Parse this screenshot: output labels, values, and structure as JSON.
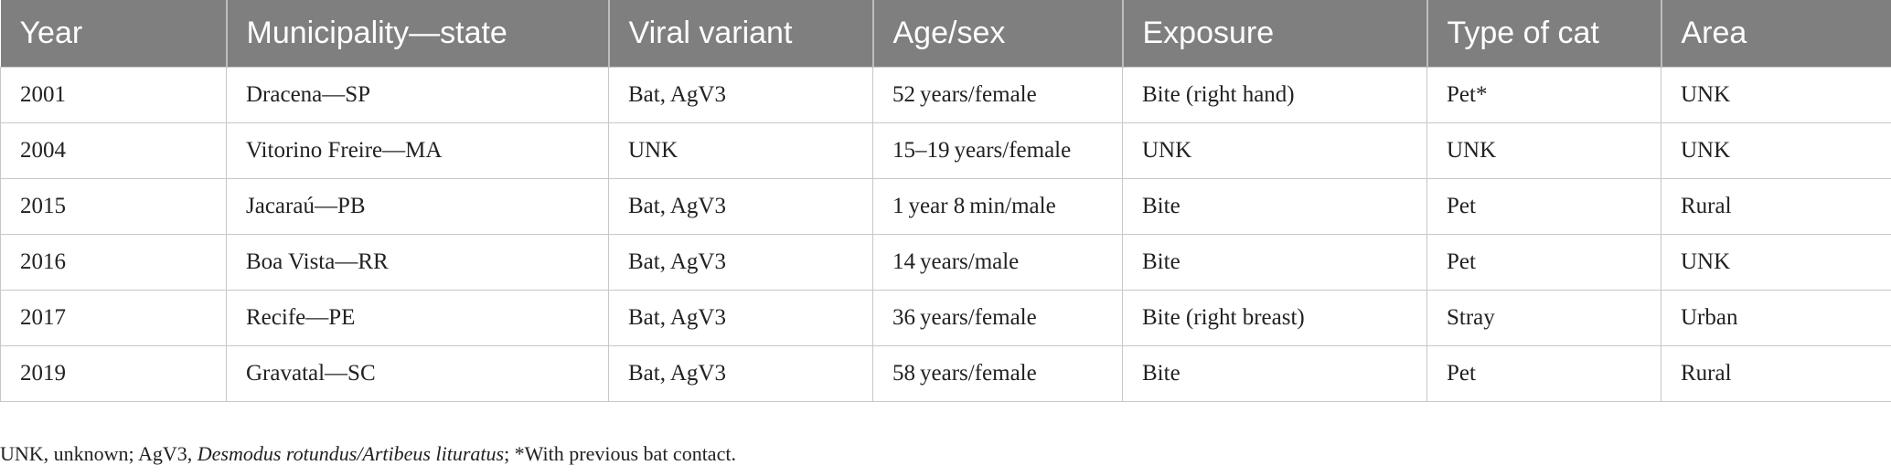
{
  "table": {
    "header": [
      "Year",
      "Municipality—state",
      "Viral variant",
      "Age/sex",
      "Exposure",
      "Type of cat",
      "Area"
    ],
    "rows": [
      [
        "2001",
        "Dracena—SP",
        "Bat, AgV3",
        "52 years/female",
        "Bite (right hand)",
        "Pet*",
        "UNK"
      ],
      [
        "2004",
        "Vitorino Freire—MA",
        "UNK",
        "15–19 years/female",
        "UNK",
        "UNK",
        "UNK"
      ],
      [
        "2015",
        "Jacaraú—PB",
        "Bat, AgV3",
        "1 year 8 min/male",
        "Bite",
        "Pet",
        "Rural"
      ],
      [
        "2016",
        "Boa Vista—RR",
        "Bat, AgV3",
        "14 years/male",
        "Bite",
        "Pet",
        "UNK"
      ],
      [
        "2017",
        "Recife—PE",
        "Bat, AgV3",
        "36 years/female",
        "Bite (right breast)",
        "Stray",
        "Urban"
      ],
      [
        "2019",
        "Gravatal—SC",
        "Bat, AgV3",
        "58 years/female",
        "Bite",
        "Pet",
        "Rural"
      ]
    ]
  },
  "footnote": {
    "before": "UNK, unknown; AgV3, ",
    "italic": "Desmodus rotundus/Artibeus lituratus",
    "after": "; *With previous bat contact."
  }
}
